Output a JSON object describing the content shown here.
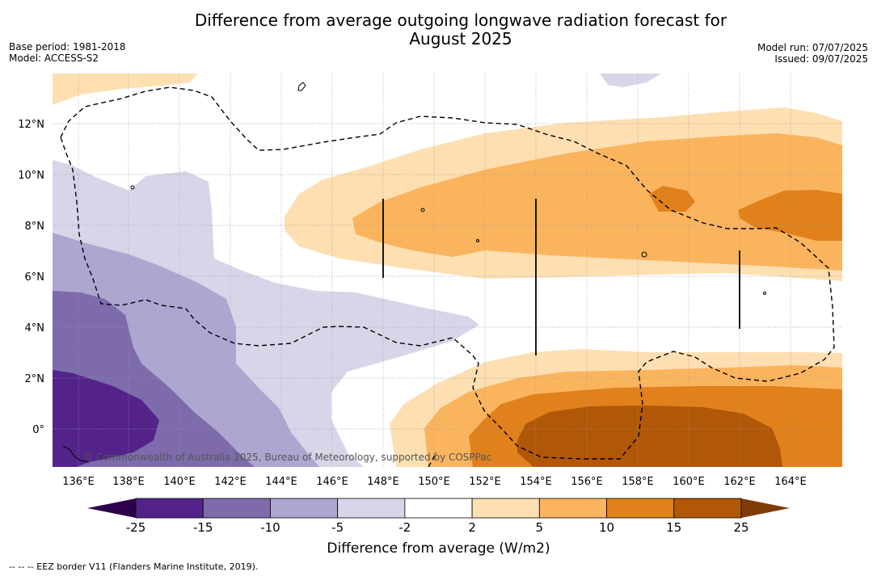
{
  "title": {
    "line1": "Difference from average outgoing longwave radiation forecast for",
    "line2": "August 2025"
  },
  "meta": {
    "base_period": "Base period: 1981-2018",
    "model": "Model: ACCESS-S2",
    "model_run": "Model run: 07/07/2025",
    "issued": "Issued: 09/07/2025"
  },
  "map": {
    "lon_labels": [
      "136°E",
      "138°E",
      "140°E",
      "142°E",
      "144°E",
      "146°E",
      "148°E",
      "150°E",
      "152°E",
      "154°E",
      "156°E",
      "158°E",
      "160°E",
      "162°E",
      "164°E"
    ],
    "lat_labels": [
      "12°N",
      "10°N",
      "8°N",
      "6°N",
      "4°N",
      "2°N",
      "0°"
    ],
    "copyright": "© Commonwealth of Australia 2025, Bureau of Meteorology, supported by COSPPac"
  },
  "colorbar": {
    "ticks": [
      "-25",
      "-15",
      "-10",
      "-5",
      "-2",
      "2",
      "5",
      "10",
      "15",
      "25"
    ],
    "colors": [
      "#53238a",
      "#7d6bab",
      "#ada6d1",
      "#d7d6e9",
      "#ffffff",
      "#fddfb1",
      "#fbb45e",
      "#e0811b",
      "#b15708"
    ],
    "extend_low_color": "#2d004b",
    "extend_high_color": "#7f3b08",
    "label": "Difference from average (W/m2)"
  },
  "legend": {
    "eez": "--  --  -- EEZ border V11 (Flanders Marine Institute, 2019)."
  }
}
